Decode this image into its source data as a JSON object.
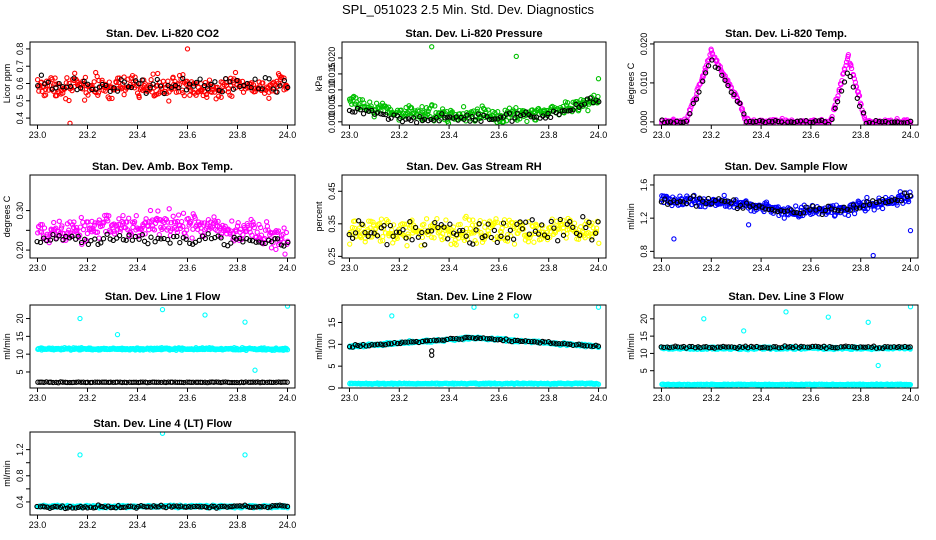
{
  "figure": {
    "title": "SPL_051023  2.5 Min. Std. Dev. Diagnostics"
  },
  "chart_data": [
    {
      "id": "co2",
      "type": "scatter",
      "title": "Stan. Dev. Li-820 CO2",
      "xlabel": "",
      "ylabel": "Licor ppm",
      "xlim": [
        22.97,
        24.03
      ],
      "ylim": [
        0.36,
        0.84
      ],
      "xticks": [
        23.0,
        23.2,
        23.4,
        23.6,
        23.8,
        24.0
      ],
      "xtick_labels": [
        "23.0",
        "23.2",
        "23.4",
        "23.6",
        "23.8",
        "24.0"
      ],
      "yticks": [
        0.4,
        0.5,
        0.6,
        0.7,
        0.8
      ],
      "ytick_labels": [
        "0.4",
        "0.5",
        "0.6",
        "0.7",
        "0.8"
      ],
      "series": [
        {
          "color": "#ff0000",
          "pattern": "band",
          "center": [
            [
              23.0,
              0.58
            ],
            [
              24.0,
              0.58
            ]
          ],
          "spread": 0.07,
          "count": 320
        },
        {
          "color": "#000000",
          "pattern": "band",
          "center": [
            [
              23.0,
              0.59
            ],
            [
              24.0,
              0.59
            ]
          ],
          "spread": 0.06,
          "count": 70
        }
      ],
      "outliers": [
        {
          "x": 23.6,
          "y": 0.8,
          "color": "#ff0000"
        },
        {
          "x": 23.13,
          "y": 0.37,
          "color": "#ff0000"
        }
      ]
    },
    {
      "id": "pressure",
      "type": "scatter",
      "title": "Stan. Dev. Li-820 Pressure",
      "xlabel": "",
      "ylabel": "kPa",
      "xlim": [
        22.97,
        24.03
      ],
      "ylim": [
        -0.001,
        0.025
      ],
      "xticks": [
        23.0,
        23.2,
        23.4,
        23.6,
        23.8,
        24.0
      ],
      "xtick_labels": [
        "23.0",
        "23.2",
        "23.4",
        "23.6",
        "23.8",
        "24.0"
      ],
      "yticks": [
        0.0,
        0.005,
        0.01,
        0.015,
        0.02
      ],
      "ytick_labels": [
        "0.000",
        "0.005",
        "0.010",
        "0.015",
        "0.020"
      ],
      "series": [
        {
          "color": "#00c000",
          "pattern": "band",
          "center": [
            [
              23.0,
              0.006
            ],
            [
              23.2,
              0.003
            ],
            [
              23.5,
              0.002
            ],
            [
              23.8,
              0.003
            ],
            [
              24.0,
              0.007
            ]
          ],
          "spread": 0.0025,
          "count": 300
        },
        {
          "color": "#000000",
          "pattern": "band",
          "center": [
            [
              23.0,
              0.004
            ],
            [
              23.2,
              0.001
            ],
            [
              23.5,
              0.001
            ],
            [
              23.8,
              0.002
            ],
            [
              24.0,
              0.007
            ]
          ],
          "spread": 0.0015,
          "count": 90
        }
      ],
      "outliers": [
        {
          "x": 23.33,
          "y": 0.0235,
          "color": "#00c000"
        },
        {
          "x": 23.67,
          "y": 0.0205,
          "color": "#00c000"
        },
        {
          "x": 24.0,
          "y": 0.0135,
          "color": "#00c000"
        }
      ]
    },
    {
      "id": "temp",
      "type": "scatter",
      "title": "Stan. Dev. Li-820 Temp.",
      "xlabel": "",
      "ylabel": "degrees C",
      "xlim": [
        22.97,
        24.03
      ],
      "ylim": [
        -0.0008,
        0.0205
      ],
      "xticks": [
        23.0,
        23.2,
        23.4,
        23.6,
        23.8,
        24.0
      ],
      "xtick_labels": [
        "23.0",
        "23.2",
        "23.4",
        "23.6",
        "23.8",
        "24.0"
      ],
      "yticks": [
        0.0,
        0.01,
        0.02
      ],
      "ytick_labels": [
        "0.000",
        "0.010",
        "0.020"
      ],
      "series": [
        {
          "color": "#ff00ff",
          "pattern": "band",
          "center": [
            [
              23.0,
              0.0
            ],
            [
              23.1,
              0.0
            ],
            [
              23.2,
              0.018
            ],
            [
              23.32,
              0.004
            ],
            [
              23.34,
              0.0
            ],
            [
              23.68,
              0.0
            ],
            [
              23.75,
              0.017
            ],
            [
              23.82,
              0.0
            ],
            [
              24.0,
              0.0
            ]
          ],
          "spread": 0.0008,
          "count": 320
        },
        {
          "color": "#000000",
          "pattern": "band",
          "center": [
            [
              23.0,
              0.0
            ],
            [
              23.1,
              0.0
            ],
            [
              23.2,
              0.016
            ],
            [
              23.32,
              0.004
            ],
            [
              23.34,
              0.0
            ],
            [
              23.68,
              0.0
            ],
            [
              23.75,
              0.013
            ],
            [
              23.82,
              0.0
            ],
            [
              24.0,
              0.0
            ]
          ],
          "spread": 0.0007,
          "count": 80
        }
      ],
      "outliers": []
    },
    {
      "id": "boxtemp",
      "type": "scatter",
      "title": "Stan. Dev. Amb. Box Temp.",
      "xlabel": "",
      "ylabel": "degrees C",
      "xlim": [
        22.97,
        24.03
      ],
      "ylim": [
        0.18,
        0.39
      ],
      "xticks": [
        23.0,
        23.2,
        23.4,
        23.6,
        23.8,
        24.0
      ],
      "xtick_labels": [
        "23.0",
        "23.2",
        "23.4",
        "23.6",
        "23.8",
        "24.0"
      ],
      "yticks": [
        0.2,
        0.25,
        0.3
      ],
      "ytick_labels": [
        "0.20",
        "",
        "0.30"
      ],
      "series": [
        {
          "color": "#ff00ff",
          "pattern": "band",
          "center": [
            [
              23.0,
              0.24
            ],
            [
              23.3,
              0.26
            ],
            [
              23.6,
              0.265
            ],
            [
              24.0,
              0.23
            ]
          ],
          "spread": 0.035,
          "count": 320
        },
        {
          "color": "#000000",
          "pattern": "band",
          "center": [
            [
              23.0,
              0.225
            ],
            [
              23.5,
              0.23
            ],
            [
              24.0,
              0.22
            ]
          ],
          "spread": 0.015,
          "count": 80
        }
      ],
      "outliers": []
    },
    {
      "id": "rh",
      "type": "scatter",
      "title": "Stan. Dev. Gas Stream RH",
      "xlabel": "",
      "ylabel": "percent",
      "xlim": [
        22.97,
        24.03
      ],
      "ylim": [
        0.245,
        0.5
      ],
      "xticks": [
        23.0,
        23.2,
        23.4,
        23.6,
        23.8,
        24.0
      ],
      "xtick_labels": [
        "23.0",
        "23.2",
        "23.4",
        "23.6",
        "23.8",
        "24.0"
      ],
      "yticks": [
        0.25,
        0.35,
        0.45
      ],
      "ytick_labels": [
        "0.25",
        "0.35",
        "0.45"
      ],
      "series": [
        {
          "color": "#ffff00",
          "pattern": "band",
          "center": [
            [
              23.0,
              0.33
            ],
            [
              24.0,
              0.33
            ]
          ],
          "spread": 0.045,
          "count": 320
        },
        {
          "color": "#000000",
          "pattern": "band",
          "center": [
            [
              23.0,
              0.33
            ],
            [
              24.0,
              0.33
            ]
          ],
          "spread": 0.045,
          "count": 80
        }
      ],
      "outliers": []
    },
    {
      "id": "sampleflow",
      "type": "scatter",
      "title": "Stan. Dev. Sample Flow",
      "xlabel": "",
      "ylabel": "ml/min",
      "xlim": [
        22.97,
        24.03
      ],
      "ylim": [
        0.72,
        1.72
      ],
      "xticks": [
        23.0,
        23.2,
        23.4,
        23.6,
        23.8,
        24.0
      ],
      "xtick_labels": [
        "23.0",
        "23.2",
        "23.4",
        "23.6",
        "23.8",
        "24.0"
      ],
      "yticks": [
        0.8,
        1.2,
        1.6
      ],
      "ytick_labels": [
        "0.8",
        "1.2",
        "1.6"
      ],
      "series": [
        {
          "color": "#0000ff",
          "pattern": "band",
          "center": [
            [
              23.0,
              1.42
            ],
            [
              23.3,
              1.38
            ],
            [
              23.5,
              1.28
            ],
            [
              23.7,
              1.3
            ],
            [
              24.0,
              1.45
            ]
          ],
          "spread": 0.08,
          "count": 320
        },
        {
          "color": "#000000",
          "pattern": "band",
          "center": [
            [
              23.0,
              1.42
            ],
            [
              23.3,
              1.38
            ],
            [
              23.5,
              1.28
            ],
            [
              23.7,
              1.3
            ],
            [
              24.0,
              1.45
            ]
          ],
          "spread": 0.07,
          "count": 80
        }
      ],
      "outliers": [
        {
          "x": 23.05,
          "y": 0.95,
          "color": "#0000ff"
        },
        {
          "x": 23.85,
          "y": 0.75,
          "color": "#0000ff"
        },
        {
          "x": 23.35,
          "y": 1.12,
          "color": "#0000ff"
        },
        {
          "x": 24.0,
          "y": 1.05,
          "color": "#0000ff"
        }
      ]
    },
    {
      "id": "line1",
      "type": "scatter",
      "title": "Stan. Dev. Line 1 Flow",
      "xlabel": "",
      "ylabel": "ml/min",
      "xlim": [
        22.97,
        24.03
      ],
      "ylim": [
        0.5,
        23.8
      ],
      "xticks": [
        23.0,
        23.2,
        23.4,
        23.6,
        23.8,
        24.0
      ],
      "xtick_labels": [
        "23.0",
        "23.2",
        "23.4",
        "23.6",
        "23.8",
        "24.0"
      ],
      "yticks": [
        5,
        10,
        15,
        20
      ],
      "ytick_labels": [
        "5",
        "10",
        "15",
        "20"
      ],
      "series": [
        {
          "color": "#00ffff",
          "pattern": "band",
          "center": [
            [
              23.0,
              11.5
            ],
            [
              24.0,
              11.4
            ]
          ],
          "spread": 0.35,
          "count": 380
        },
        {
          "color": "#000000",
          "pattern": "band",
          "center": [
            [
              23.0,
              2.1
            ],
            [
              24.0,
              2.1
            ]
          ],
          "spread": 0.1,
          "count": 110
        }
      ],
      "outliers": [
        {
          "x": 23.17,
          "y": 20.0,
          "color": "#00ffff"
        },
        {
          "x": 23.32,
          "y": 15.5,
          "color": "#00ffff"
        },
        {
          "x": 23.5,
          "y": 22.5,
          "color": "#00ffff"
        },
        {
          "x": 23.67,
          "y": 21.0,
          "color": "#00ffff"
        },
        {
          "x": 23.83,
          "y": 19.0,
          "color": "#00ffff"
        },
        {
          "x": 23.87,
          "y": 5.5,
          "color": "#00ffff"
        },
        {
          "x": 24.0,
          "y": 23.5,
          "color": "#00ffff"
        }
      ]
    },
    {
      "id": "line2",
      "type": "scatter",
      "title": "Stan. Dev. Line 2 Flow",
      "xlabel": "",
      "ylabel": "ml/min",
      "xlim": [
        22.97,
        24.03
      ],
      "ylim": [
        0,
        19
      ],
      "xticks": [
        23.0,
        23.2,
        23.4,
        23.6,
        23.8,
        24.0
      ],
      "xtick_labels": [
        "23.0",
        "23.2",
        "23.4",
        "23.6",
        "23.8",
        "24.0"
      ],
      "yticks": [
        0,
        5,
        10,
        15
      ],
      "ytick_labels": [
        "0",
        "5",
        "10",
        "15"
      ],
      "series": [
        {
          "color": "#00ffff",
          "pattern": "band",
          "center": [
            [
              23.0,
              9.5
            ],
            [
              23.5,
              11.5
            ],
            [
              24.0,
              9.5
            ]
          ],
          "spread": 0.35,
          "count": 330
        },
        {
          "color": "#00ffff",
          "pattern": "band",
          "center": [
            [
              23.0,
              1.0
            ],
            [
              24.0,
              1.0
            ]
          ],
          "spread": 0.15,
          "count": 300
        },
        {
          "color": "#000000",
          "pattern": "band",
          "center": [
            [
              23.0,
              9.5
            ],
            [
              23.5,
              11.5
            ],
            [
              24.0,
              9.5
            ]
          ],
          "spread": 0.3,
          "count": 90
        }
      ],
      "outliers": [
        {
          "x": 23.17,
          "y": 16.5,
          "color": "#00ffff"
        },
        {
          "x": 23.5,
          "y": 18.5,
          "color": "#00ffff"
        },
        {
          "x": 23.67,
          "y": 16.5,
          "color": "#00ffff"
        },
        {
          "x": 24.0,
          "y": 18.5,
          "color": "#00ffff"
        },
        {
          "x": 23.33,
          "y": 7.5,
          "color": "#000000"
        },
        {
          "x": 23.33,
          "y": 8.5,
          "color": "#000000"
        }
      ]
    },
    {
      "id": "line3",
      "type": "scatter",
      "title": "Stan. Dev. Line 3 Flow",
      "xlabel": "",
      "ylabel": "ml/min",
      "xlim": [
        22.97,
        24.03
      ],
      "ylim": [
        0,
        24
      ],
      "xticks": [
        23.0,
        23.2,
        23.4,
        23.6,
        23.8,
        24.0
      ],
      "xtick_labels": [
        "23.0",
        "23.2",
        "23.4",
        "23.6",
        "23.8",
        "24.0"
      ],
      "yticks": [
        5,
        10,
        15,
        20
      ],
      "ytick_labels": [
        "5",
        "10",
        "15",
        "20"
      ],
      "series": [
        {
          "color": "#00ffff",
          "pattern": "band",
          "center": [
            [
              23.0,
              11.5
            ],
            [
              24.0,
              11.5
            ]
          ],
          "spread": 0.4,
          "count": 330
        },
        {
          "color": "#00ffff",
          "pattern": "band",
          "center": [
            [
              23.0,
              1.0
            ],
            [
              24.0,
              1.0
            ]
          ],
          "spread": 0.15,
          "count": 300
        },
        {
          "color": "#000000",
          "pattern": "band",
          "center": [
            [
              23.0,
              11.8
            ],
            [
              24.0,
              11.8
            ]
          ],
          "spread": 0.35,
          "count": 90
        }
      ],
      "outliers": [
        {
          "x": 23.17,
          "y": 20.0,
          "color": "#00ffff"
        },
        {
          "x": 23.33,
          "y": 16.5,
          "color": "#00ffff"
        },
        {
          "x": 23.5,
          "y": 22.0,
          "color": "#00ffff"
        },
        {
          "x": 23.67,
          "y": 20.5,
          "color": "#00ffff"
        },
        {
          "x": 23.83,
          "y": 19.0,
          "color": "#00ffff"
        },
        {
          "x": 23.87,
          "y": 6.5,
          "color": "#00ffff"
        },
        {
          "x": 24.0,
          "y": 23.5,
          "color": "#00ffff"
        }
      ]
    },
    {
      "id": "line4",
      "type": "scatter",
      "title": "Stan. Dev. Line 4 (LT) Flow",
      "xlabel": "",
      "ylabel": "ml/min",
      "xlim": [
        22.97,
        24.03
      ],
      "ylim": [
        0.2,
        1.47
      ],
      "xticks": [
        23.0,
        23.2,
        23.4,
        23.6,
        23.8,
        24.0
      ],
      "xtick_labels": [
        "23.0",
        "23.2",
        "23.4",
        "23.6",
        "23.8",
        "24.0"
      ],
      "yticks": [
        0.4,
        0.6,
        0.8,
        1.0,
        1.2
      ],
      "ytick_labels": [
        "0.4",
        "",
        "0.8",
        "",
        "1.2"
      ],
      "series": [
        {
          "color": "#00ffff",
          "pattern": "band",
          "center": [
            [
              23.0,
              0.33
            ],
            [
              24.0,
              0.33
            ]
          ],
          "spread": 0.02,
          "count": 380
        },
        {
          "color": "#000000",
          "pattern": "band",
          "center": [
            [
              23.0,
              0.32
            ],
            [
              24.0,
              0.33
            ]
          ],
          "spread": 0.025,
          "count": 100
        }
      ],
      "outliers": [
        {
          "x": 23.17,
          "y": 1.12,
          "color": "#00ffff"
        },
        {
          "x": 23.5,
          "y": 1.45,
          "color": "#00ffff"
        },
        {
          "x": 23.83,
          "y": 1.12,
          "color": "#00ffff"
        }
      ]
    }
  ]
}
